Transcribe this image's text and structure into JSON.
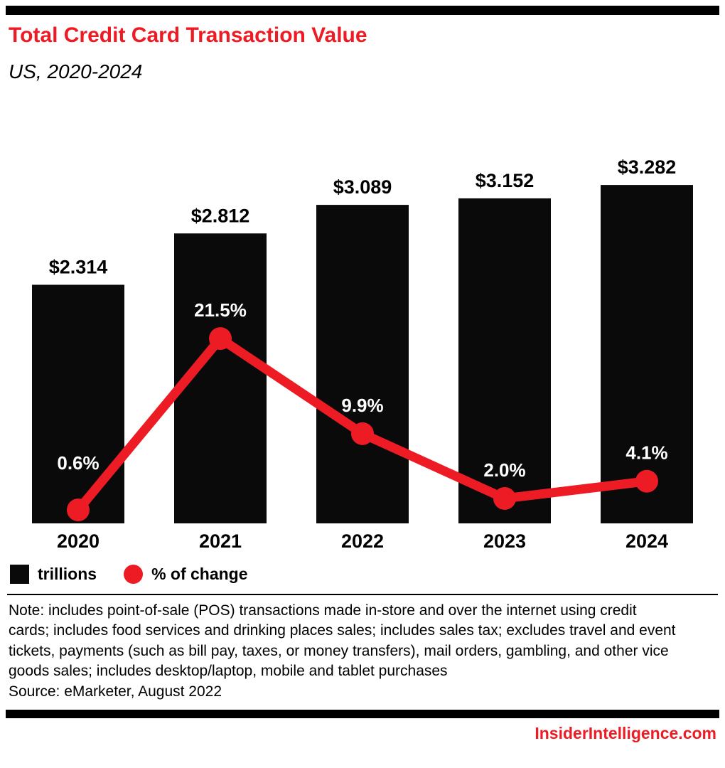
{
  "header": {
    "title": "Total Credit Card Transaction Value",
    "subtitle": "US, 2020-2024"
  },
  "chart_data": {
    "type": "combo-bar-line",
    "title": "Total Credit Card Transaction Value",
    "subtitle": "US, 2020-2024",
    "categories": [
      "2020",
      "2021",
      "2022",
      "2023",
      "2024"
    ],
    "series": [
      {
        "name": "trillions",
        "type": "bar",
        "unit": "trillions of US dollars",
        "values": [
          2.314,
          2.812,
          3.089,
          3.152,
          3.282
        ],
        "labels": [
          "$2.314",
          "$2.812",
          "$3.089",
          "$3.152",
          "$3.282"
        ],
        "color": "#0a0a0a"
      },
      {
        "name": "% of change",
        "type": "line",
        "unit": "percent",
        "values": [
          0.6,
          21.5,
          9.9,
          2.0,
          4.1
        ],
        "labels": [
          "0.6%",
          "21.5%",
          "9.9%",
          "2.0%",
          "4.1%"
        ],
        "color": "#ed1c24"
      }
    ],
    "grid": false,
    "legend_position": "bottom-left"
  },
  "legend": {
    "bars_label": "trillions",
    "line_label": "% of change"
  },
  "footer": {
    "note": "Note: includes point-of-sale (POS) transactions made in-store and over the internet using credit cards; includes food services and drinking places sales; includes sales tax; excludes travel and event tickets, payments (such as bill pay, taxes, or money transfers), mail orders, gambling, and other vice goods sales; includes desktop/laptop, mobile and tablet purchases",
    "source": "Source: eMarketer, August 2022",
    "brand": "InsiderIntelligence.com"
  },
  "colors": {
    "accent_red": "#ed1c24",
    "bar_black": "#0a0a0a"
  }
}
